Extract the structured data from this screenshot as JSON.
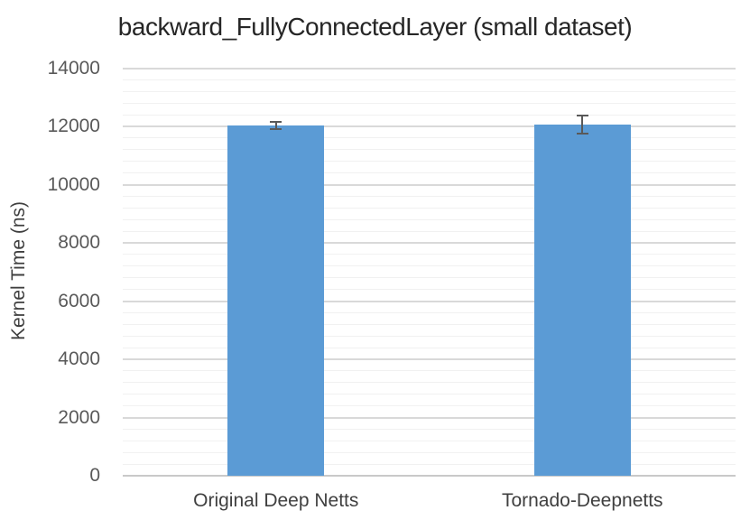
{
  "chart_data": {
    "type": "bar",
    "title": "backward_FullyConnectedLayer (small dataset)",
    "categories": [
      "Original Deep Netts",
      "Tornado-Deepnetts"
    ],
    "values": [
      12030,
      12050
    ],
    "error_bars": [
      110,
      310
    ],
    "xlabel": "",
    "ylabel": "Kernel Time (ns)",
    "ylim": [
      0,
      14000
    ],
    "y_major_unit": 2000,
    "y_minor_unit": 400,
    "y_tick_labels": [
      "0",
      "2000",
      "4000",
      "6000",
      "8000",
      "10000",
      "12000",
      "14000"
    ],
    "grid": "major and minor horizontal gridlines",
    "legend": "none",
    "colors": {
      "bar": "#5B9BD5",
      "error_bar": "#595959",
      "gridline_major": "#D9D9D9",
      "gridline_minor": "#F1F1F1",
      "axis_line": "#C9C9C9",
      "tick_label": "#595959",
      "title": "#262626",
      "category_label": "#3F3F3F"
    }
  }
}
